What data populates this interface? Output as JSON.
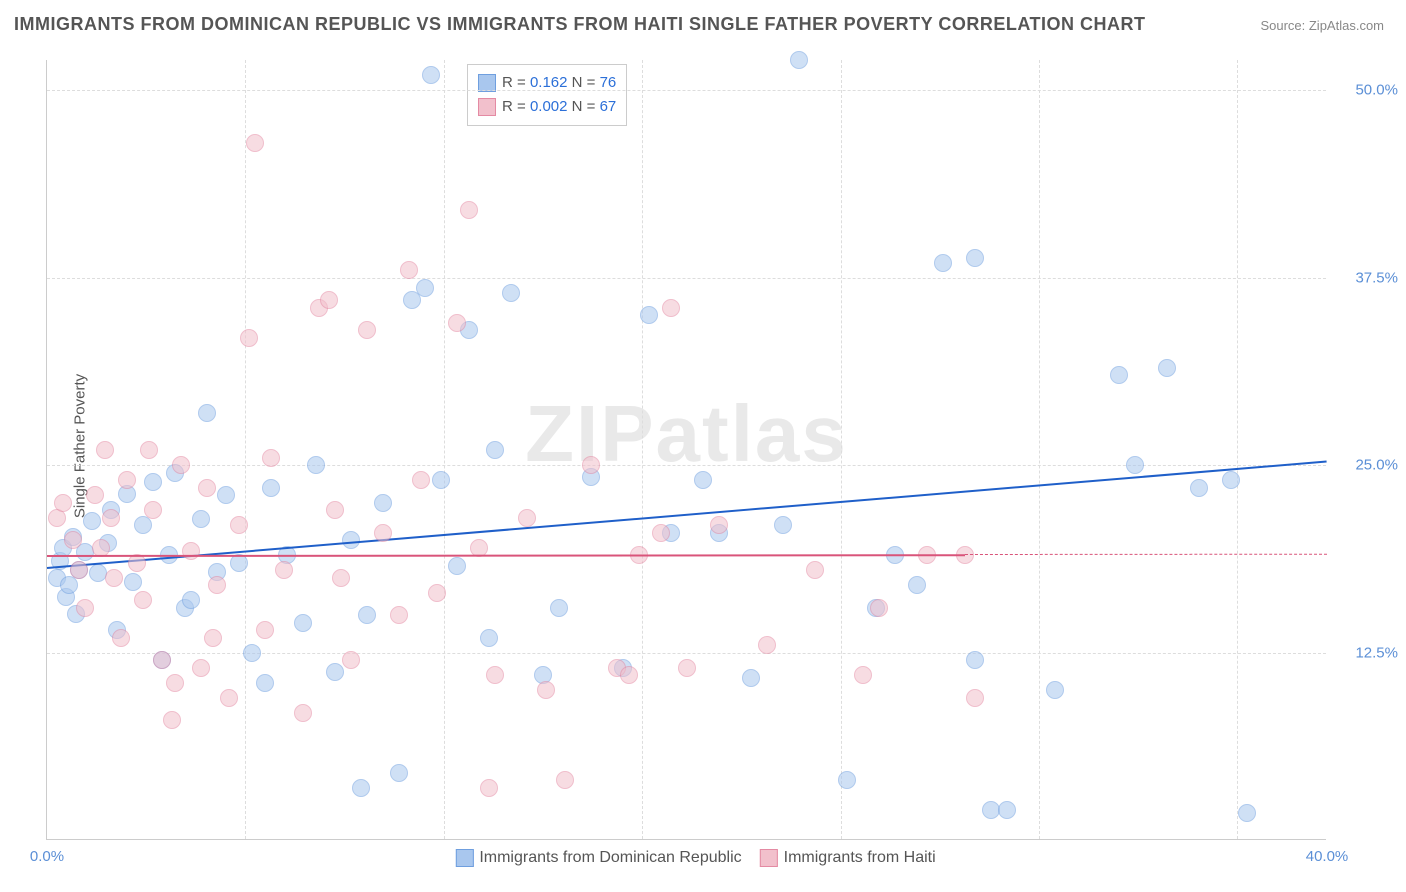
{
  "title": "IMMIGRANTS FROM DOMINICAN REPUBLIC VS IMMIGRANTS FROM HAITI SINGLE FATHER POVERTY CORRELATION CHART",
  "source": "Source: ZipAtlas.com",
  "ylabel": "Single Father Poverty",
  "watermark": "ZIPatlas",
  "chart": {
    "type": "scatter",
    "xlim": [
      0,
      40
    ],
    "ylim": [
      0,
      52
    ],
    "xticks": [
      {
        "v": 0,
        "label": "0.0%"
      },
      {
        "v": 40,
        "label": "40.0%"
      }
    ],
    "yticks": [
      {
        "v": 12.5,
        "label": "12.5%"
      },
      {
        "v": 25.0,
        "label": "25.0%"
      },
      {
        "v": 37.5,
        "label": "37.5%"
      },
      {
        "v": 50.0,
        "label": "50.0%"
      }
    ],
    "vgrid_step": 6.2,
    "background_color": "#ffffff",
    "grid_color": "#dddddd",
    "point_radius": 9,
    "point_opacity": 0.55,
    "series": [
      {
        "name": "Immigrants from Dominican Republic",
        "color_fill": "#a9c7ee",
        "color_stroke": "#6f9fdf",
        "R": "0.162",
        "N": "76",
        "regression": {
          "x1": 0,
          "y1": 18.2,
          "x2": 40,
          "y2": 25.3,
          "color": "#1f5fc9",
          "width": 2
        },
        "points": [
          [
            0.3,
            17.5
          ],
          [
            0.4,
            18.6
          ],
          [
            0.5,
            19.5
          ],
          [
            0.6,
            16.2
          ],
          [
            0.7,
            17.0
          ],
          [
            0.8,
            20.2
          ],
          [
            0.9,
            15.1
          ],
          [
            1.0,
            18.0
          ],
          [
            1.2,
            19.2
          ],
          [
            1.4,
            21.3
          ],
          [
            1.6,
            17.8
          ],
          [
            1.9,
            19.8
          ],
          [
            2.0,
            22.0
          ],
          [
            2.2,
            14.0
          ],
          [
            2.5,
            23.1
          ],
          [
            2.7,
            17.2
          ],
          [
            3.0,
            21.0
          ],
          [
            3.3,
            23.9
          ],
          [
            3.6,
            12.0
          ],
          [
            3.8,
            19.0
          ],
          [
            4.0,
            24.5
          ],
          [
            4.3,
            15.5
          ],
          [
            4.8,
            21.4
          ],
          [
            5.0,
            28.5
          ],
          [
            5.3,
            17.9
          ],
          [
            5.6,
            23.0
          ],
          [
            6.0,
            18.5
          ],
          [
            6.4,
            12.5
          ],
          [
            7.0,
            23.5
          ],
          [
            7.5,
            19.0
          ],
          [
            8.0,
            14.5
          ],
          [
            8.4,
            25.0
          ],
          [
            9.0,
            11.2
          ],
          [
            9.5,
            20.0
          ],
          [
            10.0,
            15.0
          ],
          [
            10.5,
            22.5
          ],
          [
            11.0,
            4.5
          ],
          [
            11.4,
            36.0
          ],
          [
            11.8,
            36.8
          ],
          [
            12.0,
            51.0
          ],
          [
            12.3,
            24.0
          ],
          [
            12.8,
            18.3
          ],
          [
            13.2,
            34.0
          ],
          [
            13.8,
            13.5
          ],
          [
            14.0,
            26.0
          ],
          [
            14.5,
            36.5
          ],
          [
            15.5,
            11.0
          ],
          [
            16.0,
            15.5
          ],
          [
            17.0,
            24.2
          ],
          [
            18.0,
            11.5
          ],
          [
            18.8,
            35.0
          ],
          [
            19.5,
            20.5
          ],
          [
            20.5,
            24.0
          ],
          [
            21.0,
            20.5
          ],
          [
            22.0,
            10.8
          ],
          [
            23.0,
            21.0
          ],
          [
            23.5,
            52.0
          ],
          [
            25.0,
            4.0
          ],
          [
            25.9,
            15.5
          ],
          [
            26.5,
            19.0
          ],
          [
            27.2,
            17.0
          ],
          [
            28.0,
            38.5
          ],
          [
            29.0,
            38.8
          ],
          [
            29.5,
            2.0
          ],
          [
            30.0,
            2.0
          ],
          [
            31.5,
            10.0
          ],
          [
            33.5,
            31.0
          ],
          [
            34.0,
            25.0
          ],
          [
            35.0,
            31.5
          ],
          [
            36.0,
            23.5
          ],
          [
            37.0,
            24.0
          ],
          [
            37.5,
            1.8
          ],
          [
            29.0,
            12.0
          ],
          [
            9.8,
            3.5
          ],
          [
            6.8,
            10.5
          ],
          [
            4.5,
            16.0
          ]
        ]
      },
      {
        "name": "Immigrants from Haiti",
        "color_fill": "#f2c0cc",
        "color_stroke": "#e48aa3",
        "R": "0.002",
        "N": "67",
        "regression": {
          "x1": 0,
          "y1": 19.0,
          "x2": 28.7,
          "y2": 19.05,
          "color": "#d9547a",
          "width": 2,
          "dashed_ext": {
            "x1": 28.7,
            "y1": 19.05,
            "x2": 40,
            "y2": 19.07
          }
        },
        "points": [
          [
            0.3,
            21.5
          ],
          [
            0.5,
            22.5
          ],
          [
            0.8,
            20.0
          ],
          [
            1.0,
            18.0
          ],
          [
            1.2,
            15.5
          ],
          [
            1.5,
            23.0
          ],
          [
            1.7,
            19.5
          ],
          [
            2.0,
            21.5
          ],
          [
            2.3,
            13.5
          ],
          [
            2.5,
            24.0
          ],
          [
            2.8,
            18.5
          ],
          [
            3.0,
            16.0
          ],
          [
            3.3,
            22.0
          ],
          [
            3.6,
            12.0
          ],
          [
            3.9,
            8.0
          ],
          [
            4.2,
            25.0
          ],
          [
            4.5,
            19.3
          ],
          [
            4.8,
            11.5
          ],
          [
            5.0,
            23.5
          ],
          [
            5.3,
            17.0
          ],
          [
            5.7,
            9.5
          ],
          [
            6.0,
            21.0
          ],
          [
            6.3,
            33.5
          ],
          [
            6.8,
            14.0
          ],
          [
            7.0,
            25.5
          ],
          [
            7.4,
            18.0
          ],
          [
            8.0,
            8.5
          ],
          [
            8.5,
            35.5
          ],
          [
            9.0,
            22.0
          ],
          [
            9.5,
            12.0
          ],
          [
            10.0,
            34.0
          ],
          [
            10.5,
            20.5
          ],
          [
            11.0,
            15.0
          ],
          [
            11.3,
            38.0
          ],
          [
            11.7,
            24.0
          ],
          [
            12.2,
            16.5
          ],
          [
            12.8,
            34.5
          ],
          [
            13.2,
            42.0
          ],
          [
            13.5,
            19.5
          ],
          [
            14.0,
            11.0
          ],
          [
            15.0,
            21.5
          ],
          [
            15.6,
            10.0
          ],
          [
            16.2,
            4.0
          ],
          [
            17.0,
            25.0
          ],
          [
            17.8,
            11.5
          ],
          [
            18.5,
            19.0
          ],
          [
            19.2,
            20.5
          ],
          [
            19.5,
            35.5
          ],
          [
            20.0,
            11.5
          ],
          [
            21.0,
            21.0
          ],
          [
            22.5,
            13.0
          ],
          [
            24.0,
            18.0
          ],
          [
            25.5,
            11.0
          ],
          [
            26.0,
            15.5
          ],
          [
            27.5,
            19.0
          ],
          [
            28.7,
            19.0
          ],
          [
            4.0,
            10.5
          ],
          [
            2.1,
            17.5
          ],
          [
            6.5,
            46.5
          ],
          [
            5.2,
            13.5
          ],
          [
            3.2,
            26.0
          ],
          [
            1.8,
            26.0
          ],
          [
            9.2,
            17.5
          ],
          [
            13.8,
            3.5
          ],
          [
            29.0,
            9.5
          ],
          [
            18.2,
            11.0
          ],
          [
            8.8,
            36.0
          ]
        ]
      }
    ]
  },
  "legend_box": {
    "rows": [
      {
        "swatch_fill": "#a9c7ee",
        "swatch_stroke": "#6f9fdf",
        "r_label": "R = ",
        "r_val": "0.162",
        "n_label": "   N = ",
        "n_val": "76"
      },
      {
        "swatch_fill": "#f2c0cc",
        "swatch_stroke": "#e48aa3",
        "r_label": "R = ",
        "r_val": "0.002",
        "n_label": "   N = ",
        "n_val": "67"
      }
    ]
  },
  "bottom_legend": [
    {
      "swatch_fill": "#a9c7ee",
      "swatch_stroke": "#6f9fdf",
      "label": "Immigrants from Dominican Republic"
    },
    {
      "swatch_fill": "#f2c0cc",
      "swatch_stroke": "#e48aa3",
      "label": "Immigrants from Haiti"
    }
  ]
}
